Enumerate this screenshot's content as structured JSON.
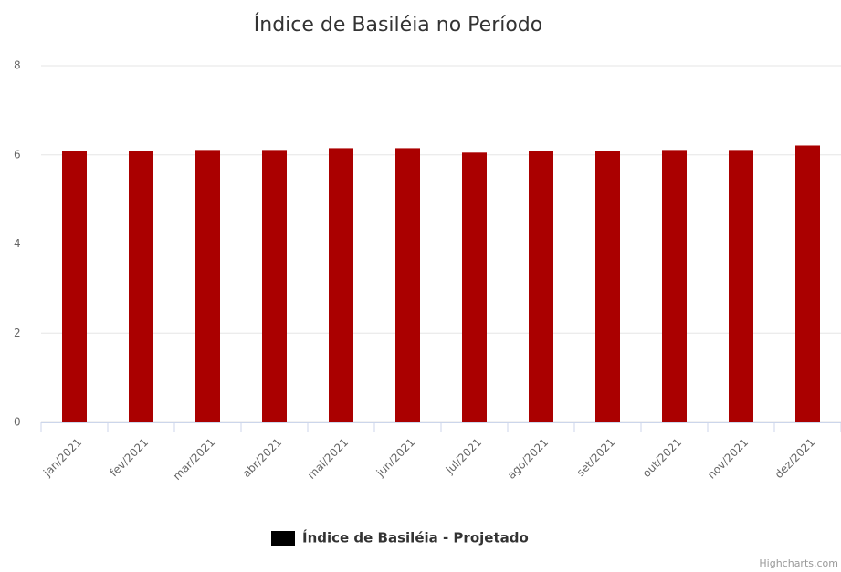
{
  "chart_data": {
    "type": "bar",
    "title": "Índice de Basiléia no Período",
    "categories": [
      "jan/2021",
      "fev/2021",
      "mar/2021",
      "abr/2021",
      "mai/2021",
      "jun/2021",
      "jul/2021",
      "ago/2021",
      "set/2021",
      "out/2021",
      "nov/2021",
      "dez/2021"
    ],
    "series": [
      {
        "name": "Índice de Basiléia - Projetado",
        "color": "#aa0000",
        "values": [
          6.08,
          6.08,
          6.11,
          6.11,
          6.15,
          6.15,
          6.05,
          6.08,
          6.08,
          6.11,
          6.11,
          6.21
        ]
      }
    ],
    "legend_symbol_color": "#000000",
    "ylim": [
      0,
      8
    ],
    "yticks": [
      0,
      2,
      4,
      6,
      8
    ],
    "grid": true,
    "legend": "bottom",
    "credits": "Highcharts.com"
  }
}
